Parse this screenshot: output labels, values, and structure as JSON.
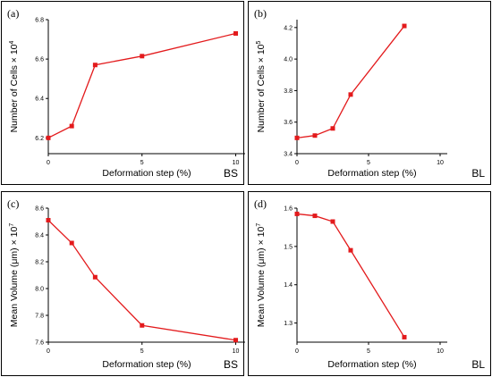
{
  "chart_data": [
    {
      "type": "line",
      "panel_label": "(a)",
      "corner_text": "BS",
      "xlabel": "Deformation step (%)",
      "ylabel": "Number of Cells × 10",
      "ylabel_sup": "4",
      "xlim": [
        0,
        10.5
      ],
      "ylim": [
        6.12,
        6.8
      ],
      "x_ticks": [
        0,
        5,
        10
      ],
      "x_tick_labels": [
        "0",
        "5",
        "10"
      ],
      "y_ticks": [
        6.2,
        6.4,
        6.6,
        6.8
      ],
      "y_tick_labels": [
        "6.2",
        "6.4",
        "6.6",
        "6.8"
      ],
      "series": [
        {
          "x": [
            0,
            1.25,
            2.5,
            5,
            10
          ],
          "y": [
            6.2,
            6.26,
            6.57,
            6.615,
            6.73
          ]
        }
      ]
    },
    {
      "type": "line",
      "panel_label": "(b)",
      "corner_text": "BL",
      "xlabel": "Deformation step (%)",
      "ylabel": "Number of Cells × 10",
      "ylabel_sup": "5",
      "xlim": [
        0,
        10.5
      ],
      "ylim": [
        3.4,
        4.25
      ],
      "x_ticks": [
        0,
        5,
        10
      ],
      "x_tick_labels": [
        "0",
        "5",
        "10"
      ],
      "y_ticks": [
        3.4,
        3.6,
        3.8,
        4.0,
        4.2
      ],
      "y_tick_labels": [
        "3.4",
        "3.6",
        "3.8",
        "4.0",
        "4.2"
      ],
      "series": [
        {
          "x": [
            0,
            1.25,
            2.5,
            3.75,
            7.5
          ],
          "y": [
            3.5,
            3.515,
            3.56,
            3.775,
            4.21
          ]
        }
      ]
    },
    {
      "type": "line",
      "panel_label": "(c)",
      "corner_text": "BS",
      "xlabel": "Deformation step (%)",
      "ylabel": "Mean Volume (μm) × 10",
      "ylabel_sup": "7",
      "xlim": [
        0,
        10.5
      ],
      "ylim": [
        7.6,
        8.6
      ],
      "x_ticks": [
        0,
        5,
        10
      ],
      "x_tick_labels": [
        "0",
        "5",
        "10"
      ],
      "y_ticks": [
        7.6,
        7.8,
        8.0,
        8.2,
        8.4,
        8.6
      ],
      "y_tick_labels": [
        "7.6",
        "7.8",
        "8.0",
        "8.2",
        "8.4",
        "8.6"
      ],
      "series": [
        {
          "x": [
            0,
            1.25,
            2.5,
            5,
            10
          ],
          "y": [
            8.51,
            8.34,
            8.085,
            7.725,
            7.615
          ]
        }
      ]
    },
    {
      "type": "line",
      "panel_label": "(d)",
      "corner_text": "BL",
      "xlabel": "Deformation step (%)",
      "ylabel": "Mean Volume (μm) × 10",
      "ylabel_sup": "7",
      "xlim": [
        0,
        10.5
      ],
      "ylim": [
        1.25,
        1.6
      ],
      "x_ticks": [
        0,
        5,
        10
      ],
      "x_tick_labels": [
        "0",
        "5",
        "10"
      ],
      "y_ticks": [
        1.3,
        1.4,
        1.5,
        1.6
      ],
      "y_tick_labels": [
        "1.3",
        "1.4",
        "1.5",
        "1.6"
      ],
      "series": [
        {
          "x": [
            0,
            1.25,
            2.5,
            3.75,
            7.5
          ],
          "y": [
            1.585,
            1.58,
            1.565,
            1.49,
            1.263
          ]
        }
      ]
    }
  ],
  "colors": {
    "series": "#e31a1c",
    "frame": "#000000"
  }
}
